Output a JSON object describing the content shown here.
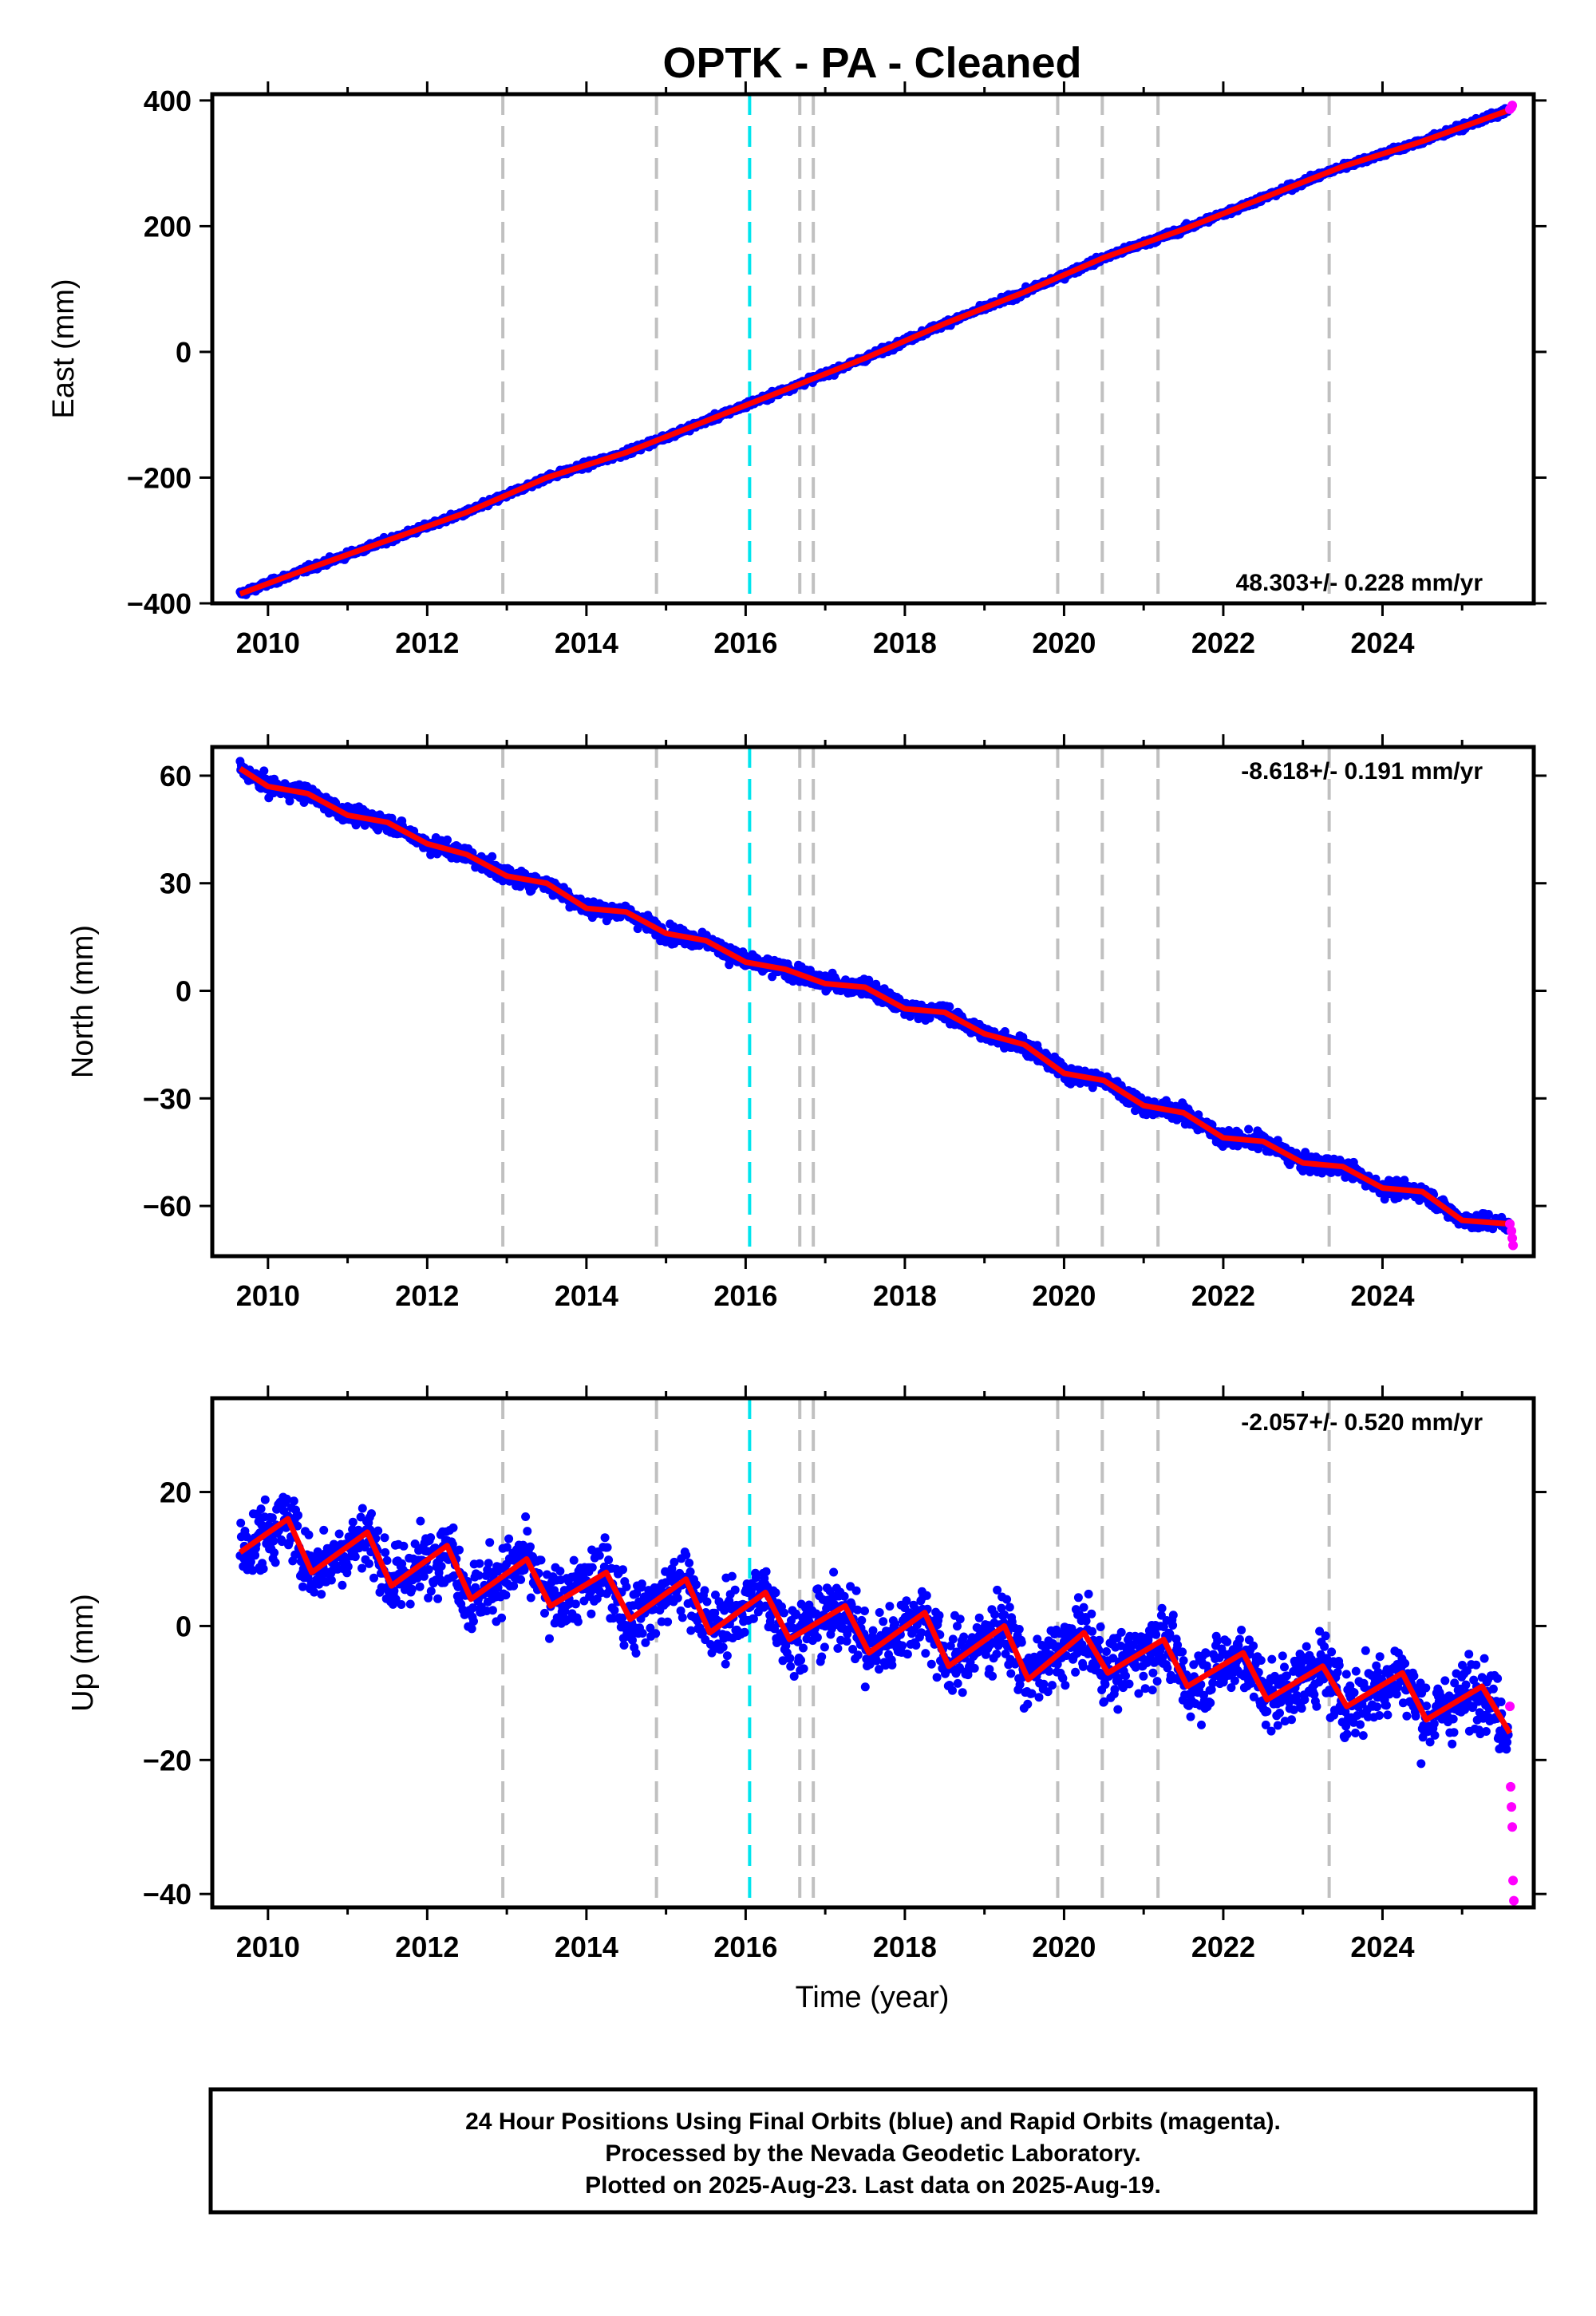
{
  "title": "OPTK  - PA - Cleaned",
  "xlabel": "Time (year)",
  "footer": {
    "line1": "24 Hour Positions Using Final Orbits (blue) and Rapid Orbits (magenta).",
    "line2": "Processed by the Nevada Geodetic Laboratory.",
    "line3": "Plotted on 2025-Aug-23. Last data on 2025-Aug-19."
  },
  "colors": {
    "final_points": "#0000ff",
    "rapid_points": "#ff00ff",
    "model_line": "#ff0000",
    "event_line": "#c0c0c0",
    "antenna_line": "#00e5ee"
  },
  "chart_data": [
    {
      "type": "scatter",
      "ylabel": "East (mm)",
      "rate_label": "48.303+/- 0.228 mm/yr",
      "xlim": [
        2009.3,
        2025.9
      ],
      "ylim": [
        -400,
        410
      ],
      "xticks": [
        2010,
        2012,
        2014,
        2016,
        2018,
        2020,
        2022,
        2024
      ],
      "yticks": [
        -400,
        -200,
        0,
        200,
        400
      ],
      "event_lines": [
        2012.95,
        2014.88,
        2016.68,
        2016.85,
        2019.92,
        2020.48,
        2021.18,
        2023.33
      ],
      "antenna_lines": [
        2016.05
      ],
      "model": {
        "x": [
          2009.65,
          2010.5,
          2011.5,
          2012.5,
          2013.5,
          2014.5,
          2015.5,
          2016.5,
          2017.5,
          2018.5,
          2019.5,
          2020.5,
          2021.5,
          2022.5,
          2023.5,
          2024.5,
          2025.6
        ],
        "y": [
          -385,
          -345,
          -300,
          -255,
          -200,
          -160,
          -110,
          -60,
          -10,
          45,
          95,
          150,
          195,
          245,
          295,
          335,
          385
        ]
      },
      "rapid_points": {
        "x": [
          2025.6,
          2025.62,
          2025.63
        ],
        "y": [
          386,
          389,
          392
        ]
      }
    },
    {
      "type": "scatter",
      "ylabel": "North (mm)",
      "rate_label": "-8.618+/- 0.191 mm/yr",
      "xlim": [
        2009.3,
        2025.9
      ],
      "ylim": [
        -74,
        68
      ],
      "xticks": [
        2010,
        2012,
        2014,
        2016,
        2018,
        2020,
        2022,
        2024
      ],
      "yticks": [
        -60,
        -30,
        0,
        30,
        60
      ],
      "event_lines": [
        2012.95,
        2014.88,
        2016.68,
        2016.85,
        2019.92,
        2020.48,
        2021.18,
        2023.33
      ],
      "antenna_lines": [
        2016.05
      ],
      "model": {
        "x": [
          2009.65,
          2010.0,
          2010.5,
          2011.0,
          2011.5,
          2012.0,
          2012.5,
          2013.0,
          2013.5,
          2014.0,
          2014.5,
          2015.0,
          2015.5,
          2016.0,
          2016.5,
          2017.0,
          2017.5,
          2018.0,
          2018.5,
          2019.0,
          2019.5,
          2020.0,
          2020.5,
          2021.0,
          2021.5,
          2022.0,
          2022.5,
          2023.0,
          2023.5,
          2024.0,
          2024.5,
          2025.0,
          2025.6
        ],
        "y": [
          62,
          57,
          55,
          49,
          47,
          41,
          38,
          32,
          30,
          23,
          22,
          16,
          14,
          8,
          6,
          2,
          1,
          -5,
          -6,
          -12,
          -15,
          -23,
          -25,
          -32,
          -34,
          -41,
          -42,
          -48,
          -49,
          -55,
          -56,
          -64,
          -65
        ]
      },
      "rapid_points": {
        "x": [
          2025.6,
          2025.62,
          2025.63,
          2025.64
        ],
        "y": [
          -65,
          -67,
          -69,
          -71
        ]
      }
    },
    {
      "type": "scatter",
      "ylabel": "Up (mm)",
      "rate_label": "-2.057+/- 0.520 mm/yr",
      "xlim": [
        2009.3,
        2025.9
      ],
      "ylim": [
        -42,
        34
      ],
      "xticks": [
        2010,
        2012,
        2014,
        2016,
        2018,
        2020,
        2022,
        2024
      ],
      "yticks": [
        -40,
        -20,
        0,
        20
      ],
      "event_lines": [
        2012.95,
        2014.88,
        2016.68,
        2016.85,
        2019.92,
        2020.48,
        2021.18,
        2023.33
      ],
      "antenna_lines": [
        2016.05
      ],
      "model": {
        "x": [
          2009.65,
          2010.25,
          2010.55,
          2011.25,
          2011.55,
          2012.25,
          2012.55,
          2013.25,
          2013.55,
          2014.25,
          2014.55,
          2015.25,
          2015.55,
          2016.25,
          2016.55,
          2017.25,
          2017.55,
          2018.25,
          2018.55,
          2019.25,
          2019.55,
          2020.25,
          2020.55,
          2021.25,
          2021.55,
          2022.25,
          2022.55,
          2023.25,
          2023.55,
          2024.25,
          2024.55,
          2025.25,
          2025.6
        ],
        "y": [
          11,
          16,
          8,
          14,
          6,
          12,
          4,
          10,
          3,
          8,
          1,
          7,
          -1,
          5,
          -2,
          3,
          -4,
          2,
          -6,
          0,
          -8,
          -1,
          -7,
          -2,
          -9,
          -4,
          -11,
          -6,
          -12,
          -7,
          -14,
          -9,
          -16
        ]
      },
      "rapid_points": {
        "x": [
          2025.6,
          2025.61,
          2025.62,
          2025.63,
          2025.64,
          2025.65
        ],
        "y": [
          -12,
          -24,
          -27,
          -30,
          -38,
          -41
        ]
      }
    }
  ]
}
